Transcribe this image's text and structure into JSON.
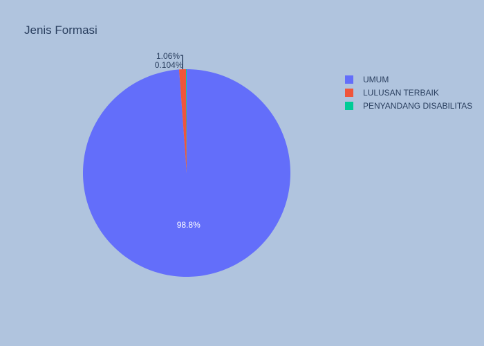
{
  "chart_data": {
    "type": "pie",
    "title": "Jenis Formasi",
    "categories": [
      "UMUM",
      "LULUSAN TERBAIK",
      "PENYANDANG DISABILITAS"
    ],
    "values": [
      98.8,
      1.06,
      0.104
    ],
    "labels": [
      "98.8%",
      "1.06%",
      "0.104%"
    ],
    "colors": [
      "#636efa",
      "#ef553b",
      "#00cc96"
    ],
    "legend_position": "top-right",
    "direction": "clockwise"
  }
}
